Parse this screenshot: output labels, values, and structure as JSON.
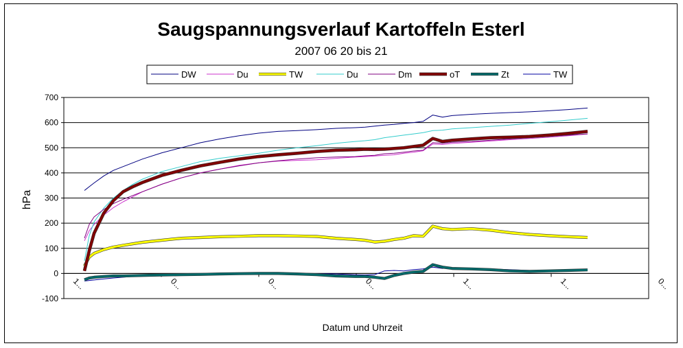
{
  "chart_data": {
    "type": "line",
    "title": "Saugspannungsverlauf Kartoffeln Esterl",
    "subtitle": "2007 06 20 bis 21",
    "xlabel": "Datum und Uhrzeit",
    "ylabel": "hPa",
    "ylim": [
      -100,
      700
    ],
    "yticks": [
      -100,
      0,
      100,
      200,
      300,
      400,
      500,
      600,
      700
    ],
    "grid": true,
    "legend_position": "top",
    "x_tick_labels": [
      "1...",
      "0...",
      "0...",
      "0...",
      "1...",
      "1...",
      "0..."
    ],
    "x": [
      0,
      0.5,
      1,
      2,
      3,
      4,
      5,
      6,
      8,
      10,
      12,
      14,
      16,
      18,
      20,
      22,
      24,
      26,
      28,
      29,
      30,
      31,
      32,
      33,
      34,
      35,
      36,
      37,
      38,
      40,
      42,
      44,
      46,
      48,
      50,
      52
    ],
    "series": [
      {
        "name": "DW",
        "color": "#000080",
        "width": 1,
        "values": [
          330,
          345,
          360,
          388,
          410,
          425,
          440,
          455,
          480,
          500,
          520,
          535,
          548,
          558,
          565,
          568,
          572,
          577,
          580,
          582,
          586,
          590,
          593,
          597,
          600,
          605,
          630,
          622,
          628,
          633,
          637,
          640,
          643,
          647,
          652,
          658
        ]
      },
      {
        "name": "Du",
        "color": "#cc33cc",
        "width": 1,
        "values": [
          130,
          170,
          195,
          232,
          262,
          285,
          305,
          325,
          355,
          380,
          400,
          415,
          430,
          440,
          447,
          450,
          452,
          458,
          463,
          465,
          467,
          470,
          472,
          478,
          482,
          488,
          515,
          513,
          517,
          522,
          527,
          532,
          537,
          542,
          548,
          555
        ]
      },
      {
        "name": "TW",
        "color": "#ffff00",
        "width": 3,
        "values": [
          30,
          65,
          80,
          95,
          105,
          112,
          118,
          124,
          132,
          140,
          143,
          146,
          148,
          150,
          150,
          149,
          147,
          140,
          135,
          132,
          125,
          128,
          135,
          140,
          150,
          148,
          188,
          178,
          175,
          178,
          172,
          162,
          155,
          150,
          146,
          143
        ]
      },
      {
        "name": "Du",
        "color": "#33cccc",
        "width": 1,
        "values": [
          50,
          150,
          205,
          260,
          300,
          330,
          355,
          375,
          405,
          425,
          445,
          458,
          468,
          478,
          490,
          500,
          508,
          518,
          525,
          528,
          532,
          540,
          545,
          550,
          555,
          560,
          568,
          570,
          575,
          580,
          585,
          590,
          597,
          603,
          610,
          617
        ]
      },
      {
        "name": "Dm",
        "color": "#800080",
        "width": 1,
        "values": [
          140,
          195,
          225,
          255,
          278,
          295,
          310,
          325,
          355,
          380,
          400,
          415,
          428,
          440,
          448,
          455,
          460,
          463,
          465,
          468,
          470,
          476,
          478,
          482,
          487,
          490,
          520,
          518,
          522,
          525,
          530,
          535,
          540,
          545,
          550,
          555
        ]
      },
      {
        "name": "oT",
        "color": "#800000",
        "width": 3.5,
        "values": [
          10,
          90,
          160,
          240,
          290,
          325,
          345,
          362,
          390,
          410,
          428,
          442,
          455,
          465,
          472,
          478,
          485,
          490,
          492,
          494,
          493,
          494,
          497,
          500,
          505,
          510,
          537,
          525,
          530,
          535,
          540,
          542,
          545,
          550,
          557,
          565
        ]
      },
      {
        "name": "Zt",
        "color": "#006b6b",
        "width": 3,
        "values": [
          -25,
          -18,
          -15,
          -12,
          -10,
          -10,
          -9,
          -8,
          -6,
          -5,
          -4,
          -2,
          -1,
          0,
          0,
          -2,
          -5,
          -10,
          -12,
          -12,
          -15,
          -20,
          -8,
          0,
          5,
          8,
          35,
          25,
          20,
          18,
          15,
          10,
          8,
          10,
          12,
          14
        ]
      },
      {
        "name": "TW",
        "color": "#0000a0",
        "width": 1,
        "values": [
          -30,
          -28,
          -26,
          -22,
          -18,
          -15,
          -12,
          -10,
          -8,
          -6,
          -4,
          -3,
          -2,
          -1,
          0,
          0,
          -1,
          -2,
          -5,
          -6,
          -5,
          10,
          12,
          10,
          15,
          18,
          25,
          20,
          22,
          20,
          18,
          15,
          12,
          12,
          14,
          15
        ]
      }
    ]
  }
}
